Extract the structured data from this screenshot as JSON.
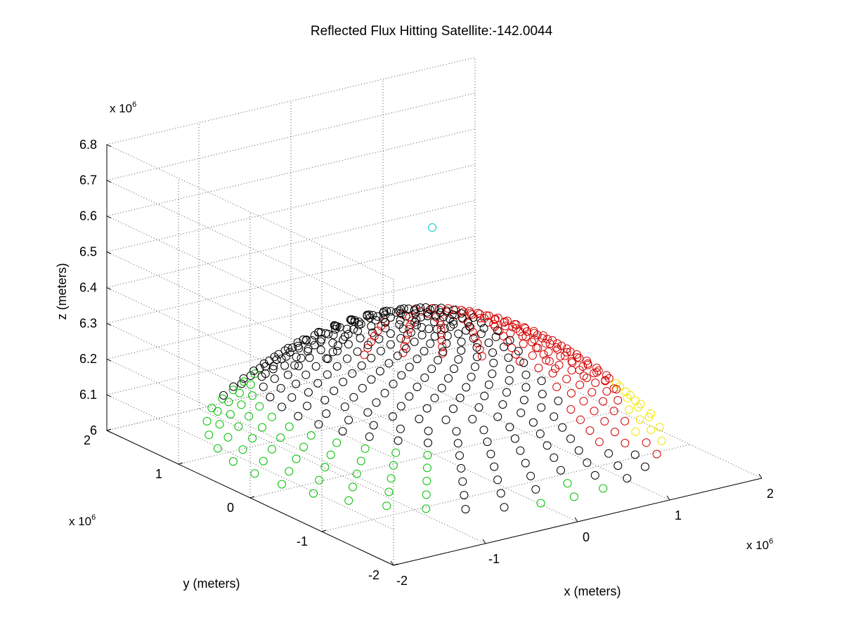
{
  "chart_data": {
    "type": "scatter",
    "title": "Reflected Flux Hitting Satellite:-142.0044",
    "xlabel": "x (meters)",
    "ylabel": "y (meters)",
    "zlabel": "z (meters)",
    "x_exponent_label": "x 10",
    "y_exponent_label": "x 10",
    "z_exponent_label": "x 10",
    "exponent": "6",
    "xlim": [
      -2,
      2
    ],
    "ylim": [
      -2,
      2
    ],
    "zlim": [
      6.0,
      6.8
    ],
    "x_ticks": [
      "-2",
      "-1",
      "0",
      "1",
      "2"
    ],
    "y_ticks": [
      "-2",
      "-1",
      "0",
      "1",
      "2"
    ],
    "z_ticks": [
      "6",
      "6.1",
      "6.2",
      "6.3",
      "6.4",
      "6.5",
      "6.6",
      "6.7",
      "6.8"
    ],
    "grid": true,
    "marker": "open-circle",
    "satellite_point": {
      "x": -0.1,
      "y": -0.1,
      "z": 6.65,
      "color": "#00c8c8"
    },
    "surface": {
      "description": "Earth surface cap sampled on rings",
      "earth_radius": 6.371,
      "rings": 18,
      "points_per_ring": 36
    },
    "colors": {
      "black": "#000000",
      "red": "#d40000",
      "yellow": "#f2e600",
      "green": "#00c000",
      "cyan": "#00c8c8",
      "axis": "#000000",
      "grid": "#555555"
    }
  }
}
